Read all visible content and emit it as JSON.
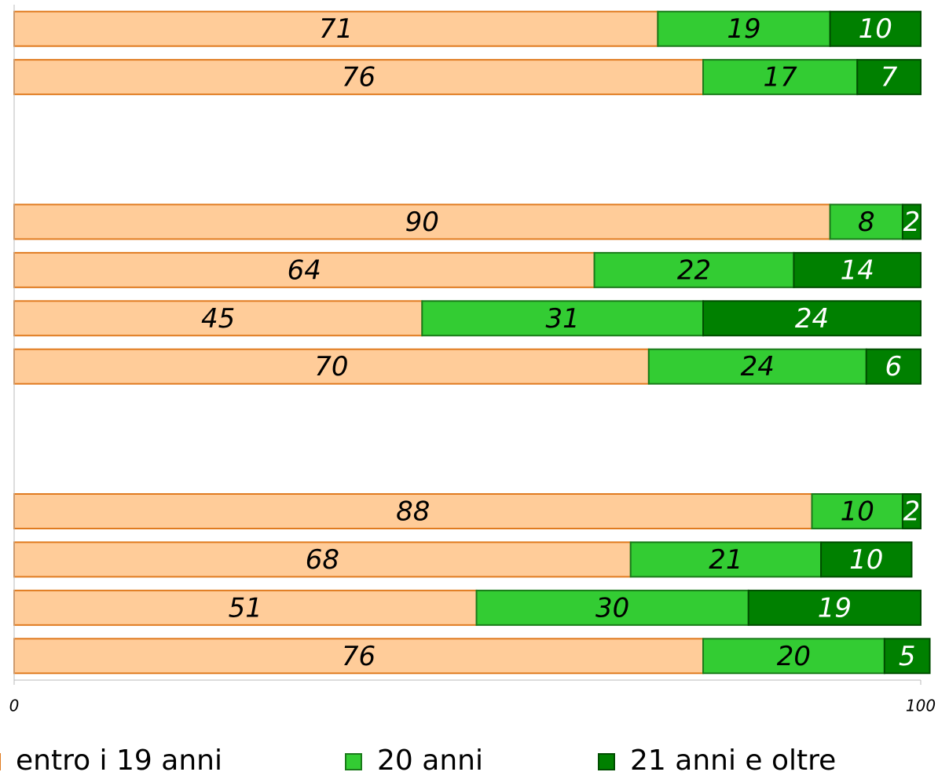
{
  "chart_data": {
    "type": "stacked_barh",
    "categories": [
      null,
      null,
      null,
      null,
      null,
      null,
      null,
      null,
      null,
      null,
      null,
      null,
      null,
      null
    ],
    "series": [
      {
        "name": "entro i 19 anni",
        "color": "#ffcc99",
        "stroke": "#e07b20",
        "values": [
          71,
          76,
          null,
          null,
          90,
          64,
          45,
          70,
          null,
          null,
          88,
          68,
          51,
          76
        ]
      },
      {
        "name": "20 anni",
        "color": "#33cc33",
        "stroke": "#1a7a1a",
        "values": [
          19,
          17,
          null,
          null,
          8,
          22,
          31,
          24,
          null,
          null,
          10,
          21,
          30,
          20
        ]
      },
      {
        "name": "21 anni e oltre",
        "color": "#008000",
        "stroke": "#004d00",
        "values": [
          10,
          7,
          null,
          null,
          2,
          14,
          24,
          6,
          null,
          null,
          2,
          10,
          19,
          5
        ]
      }
    ],
    "xlim": [
      0,
      100
    ],
    "xticks": [
      0,
      100
    ],
    "legend": "bottom"
  }
}
